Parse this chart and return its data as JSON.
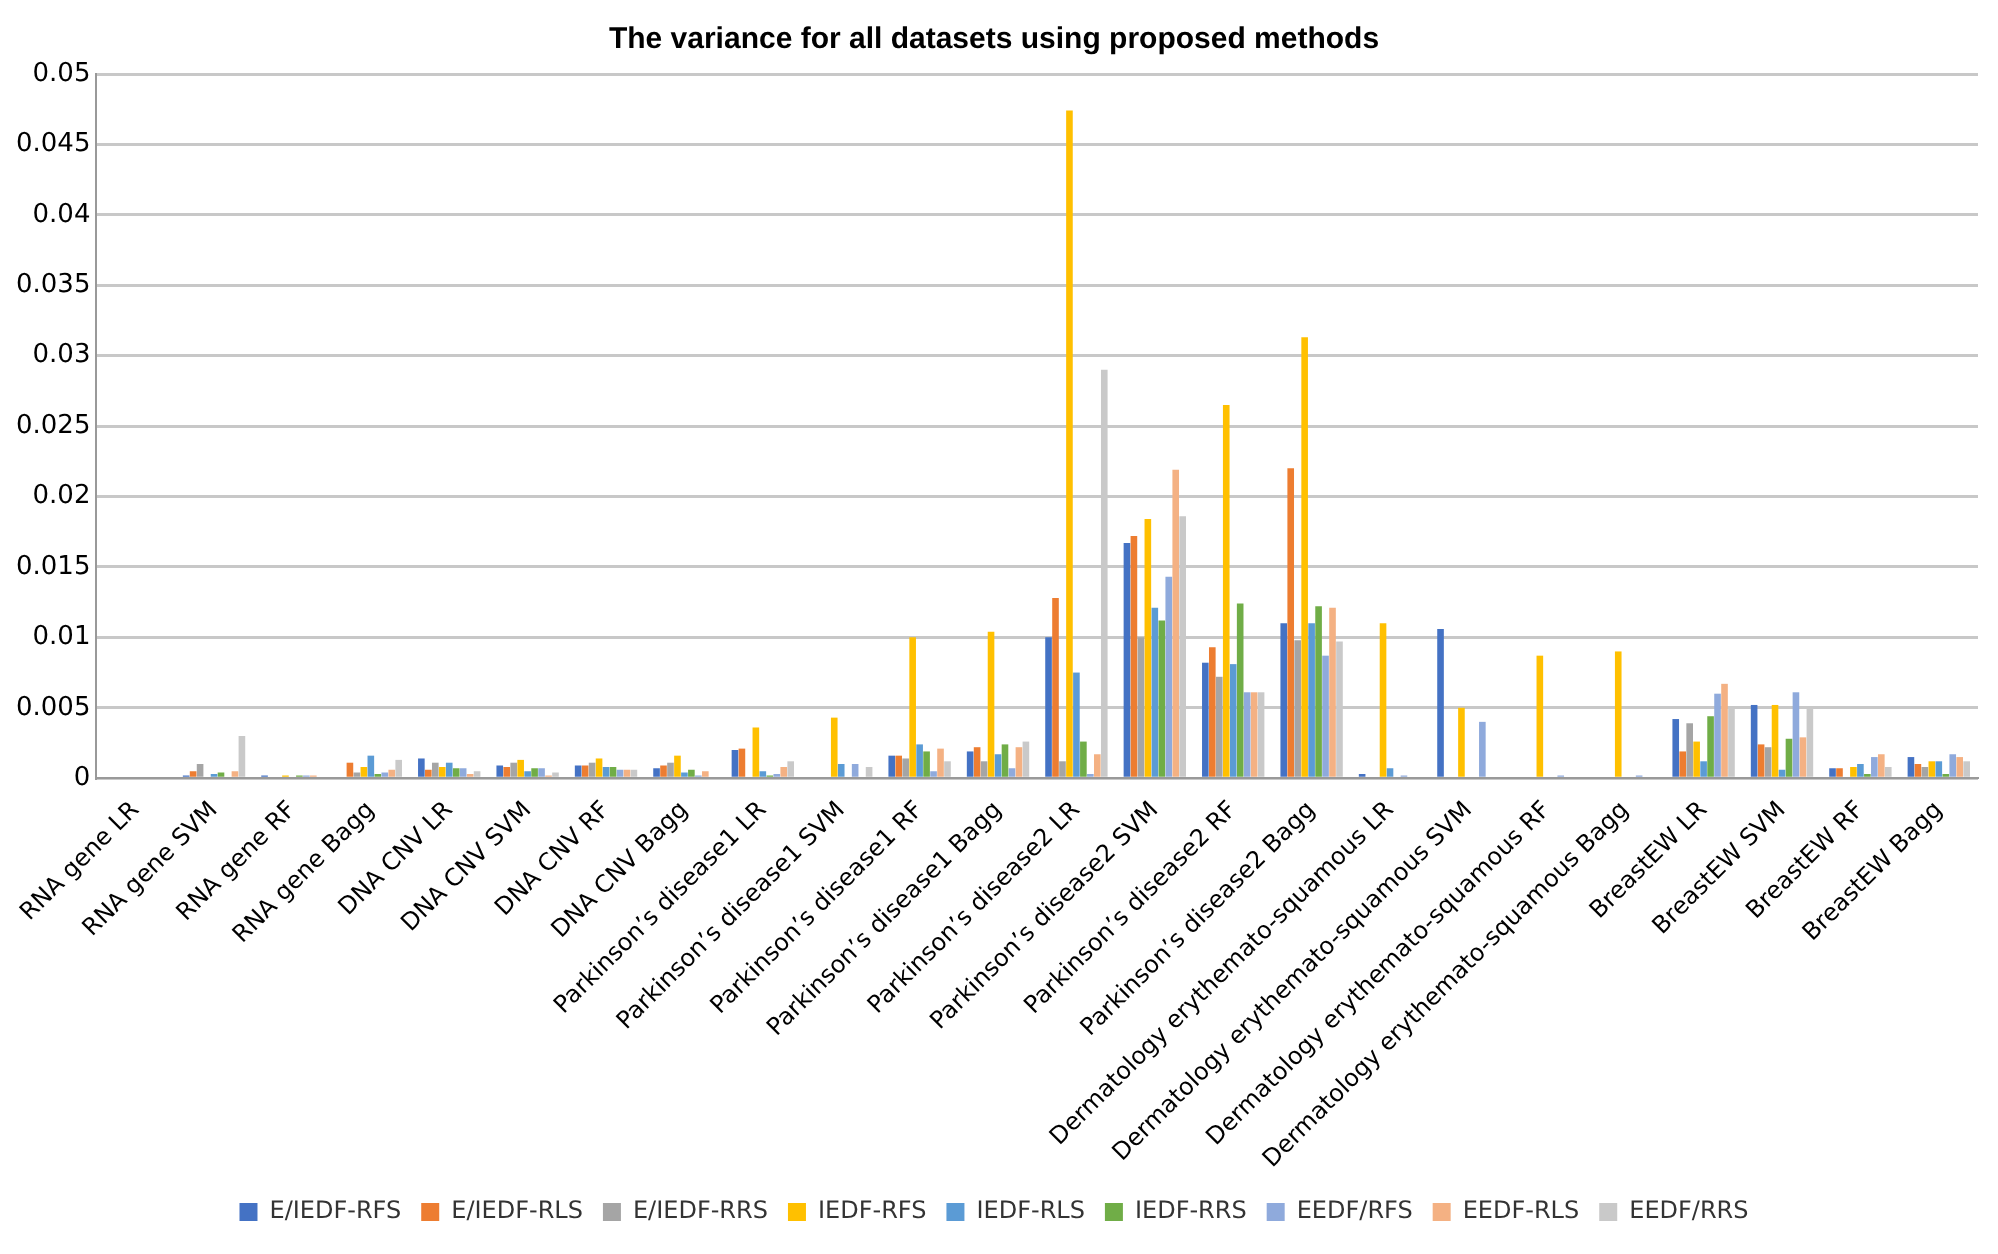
{
  "chart_data": {
    "type": "bar",
    "title": "The variance for all datasets using proposed methods",
    "categories": [
      "RNA gene LR",
      "RNA gene SVM",
      "RNA gene RF",
      "RNA gene Bagg",
      "DNA CNV LR",
      "DNA CNV SVM",
      "DNA CNV RF",
      "DNA CNV Bagg",
      "Parkinson’s disease1 LR",
      "Parkinson’s disease1 SVM",
      "Parkinson’s disease1 RF",
      "Parkinson’s disease1 Bagg",
      "Parkinson’s disease2 LR",
      "Parkinson’s disease2 SVM",
      "Parkinson’s disease2 RF",
      "Parkinson’s disease2 Bagg",
      "Dermatology erythemato-squamous LR",
      "Dermatology erythemato-squamous SVM",
      "Dermatology erythemato-squamous RF",
      "Dermatology erythemato-squamous Bagg",
      "BreastEW LR",
      "BreastEW SVM",
      "BreastEW RF",
      "BreastEW Bagg"
    ],
    "series": [
      {
        "name": "E/IEDF-RFS",
        "color": "#4472c4",
        "values": [
          0,
          0.0002,
          0.0002,
          0.0001,
          0.0014,
          0.0009,
          0.0009,
          0.0007,
          0.002,
          0.0001,
          0.0016,
          0.0019,
          0.01,
          0.0167,
          0.0082,
          0.011,
          0.0003,
          0.0106,
          0,
          0,
          0.0042,
          0.0052,
          0.0007,
          0.0015
        ]
      },
      {
        "name": "E/IEDF-RLS",
        "color": "#ed7d31",
        "values": [
          0,
          0.0005,
          0,
          0.0011,
          0.0006,
          0.0008,
          0.0009,
          0.0009,
          0.0021,
          0,
          0.0016,
          0.0022,
          0.0128,
          0.0172,
          0.0093,
          0.022,
          0,
          0,
          0,
          0,
          0.0019,
          0.0024,
          0.0007,
          0.001
        ]
      },
      {
        "name": "E/IEDF-RRS",
        "color": "#a5a5a5",
        "values": [
          0,
          0.001,
          0.0001,
          0.0004,
          0.0011,
          0.0011,
          0.0011,
          0.0011,
          0.0001,
          0,
          0.0014,
          0.0012,
          0.0012,
          0.01,
          0.0072,
          0.0098,
          0,
          0,
          0,
          0,
          0.0039,
          0.0022,
          0.0001,
          0.0008
        ]
      },
      {
        "name": "IEDF-RFS",
        "color": "#ffc000",
        "values": [
          0,
          null,
          0.0002,
          0.0008,
          0.0008,
          0.0013,
          0.0014,
          0.0016,
          0.0036,
          0.0043,
          0.01,
          0.0104,
          0.0474,
          0.0184,
          0.0265,
          0.0313,
          0.011,
          0.005,
          0.0087,
          0.009,
          0.0026,
          0.0052,
          0.0008,
          0.0012
        ]
      },
      {
        "name": "IEDF-RLS",
        "color": "#5b9bd5",
        "values": [
          0,
          0.0003,
          0.0001,
          0.0016,
          0.0011,
          0.0005,
          0.0008,
          0.0004,
          0.0005,
          0.001,
          0.0024,
          0.0017,
          0.0075,
          0.0121,
          0.0081,
          0.011,
          0.0007,
          0,
          0,
          0,
          0.0012,
          0.0006,
          0.001,
          0.0012
        ]
      },
      {
        "name": "IEDF-RRS",
        "color": "#70ad47",
        "values": [
          0,
          0.0004,
          0.0002,
          0.0003,
          0.0007,
          0.0007,
          0.0008,
          0.0006,
          0.0002,
          0,
          0.0019,
          0.0024,
          0.0026,
          0.0112,
          0.0124,
          0.0122,
          0,
          0,
          0,
          0,
          0.0044,
          0.0028,
          0.0003,
          0.0003
        ]
      },
      {
        "name": "EEDF/RFS",
        "color": "#8faadc",
        "values": [
          0,
          null,
          0.0002,
          0.0004,
          0.0007,
          0.0007,
          0.0006,
          0.0002,
          0.0003,
          0.001,
          0.0005,
          0.0007,
          0.0003,
          0.0143,
          0.0061,
          0.0087,
          0.0002,
          0.004,
          0.0002,
          0.0002,
          0.006,
          0.0061,
          0.0015,
          0.0017
        ]
      },
      {
        "name": "EEDF-RLS",
        "color": "#f4b183",
        "values": [
          0,
          0.0005,
          0.0002,
          0.0006,
          0.0003,
          0.0002,
          0.0006,
          0.0005,
          0.0008,
          0,
          0.0021,
          0.0022,
          0.0017,
          0.0219,
          0.0061,
          0.0121,
          0,
          0,
          0,
          0,
          0.0067,
          0.0029,
          0.0017,
          0.0015
        ]
      },
      {
        "name": "EEDF/RRS",
        "color": "#c9c9c9",
        "values": [
          0,
          0.003,
          0.0001,
          0.0013,
          0.0005,
          0.0004,
          0.0006,
          null,
          0.0012,
          0.0008,
          0.0012,
          0.0026,
          0.029,
          0.0186,
          0.0061,
          0.0097,
          0,
          0,
          0,
          0,
          0.005,
          0.005,
          0.0008,
          0.0012
        ]
      }
    ],
    "ylim": [
      0,
      0.05
    ],
    "yticks": [
      0,
      0.005,
      0.01,
      0.015,
      0.02,
      0.025,
      0.03,
      0.035,
      0.04,
      0.045,
      0.05
    ],
    "grid": "y",
    "legend": "bottom"
  }
}
